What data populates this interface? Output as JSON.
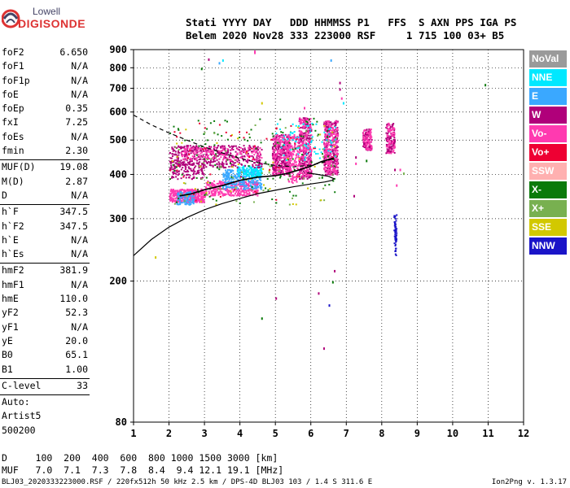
{
  "logo": {
    "line1": "Lowell",
    "line2": "DIGISONDE"
  },
  "header": {
    "line1": "Stati YYYY DAY   DDD HHMMSS P1   FFS  S AXN PPS IGA PS",
    "line2": "Belem 2020 Nov28 333 223000 RSF     1 715 100 03+ B5"
  },
  "params": [
    {
      "label": "foF2",
      "value": "6.650"
    },
    {
      "label": "foF1",
      "value": "N/A"
    },
    {
      "label": "foF1p",
      "value": "N/A"
    },
    {
      "label": "foE",
      "value": "N/A"
    },
    {
      "label": "foEp",
      "value": "0.35"
    },
    {
      "label": "fxI",
      "value": "7.25"
    },
    {
      "label": "foEs",
      "value": "N/A"
    },
    {
      "label": "fmin",
      "value": "2.30"
    },
    {
      "sep": true
    },
    {
      "label": "MUF(D)",
      "value": "19.08"
    },
    {
      "label": "M(D)",
      "value": "2.87"
    },
    {
      "label": "D",
      "value": "N/A"
    },
    {
      "sep": true
    },
    {
      "label": "h`F",
      "value": "347.5"
    },
    {
      "label": "h`F2",
      "value": "347.5"
    },
    {
      "label": "h`E",
      "value": "N/A"
    },
    {
      "label": "h`Es",
      "value": "N/A"
    },
    {
      "sep": true
    },
    {
      "label": "hmF2",
      "value": "381.9"
    },
    {
      "label": "hmF1",
      "value": "N/A"
    },
    {
      "label": "hmE",
      "value": "110.0"
    },
    {
      "label": "yF2",
      "value": "52.3"
    },
    {
      "label": "yF1",
      "value": "N/A"
    },
    {
      "label": "yE",
      "value": "20.0"
    },
    {
      "label": "B0",
      "value": "65.1"
    },
    {
      "label": "B1",
      "value": "1.00"
    },
    {
      "sep": true
    },
    {
      "label": "C-level",
      "value": "33"
    },
    {
      "sep": true
    },
    {
      "label": "Auto:",
      "value": ""
    },
    {
      "label": "Artist5",
      "value": ""
    },
    {
      "label": "500200",
      "value": ""
    }
  ],
  "legend": [
    {
      "label": "NoVal",
      "bg": "#9a9a9a",
      "fg": "#ffffff"
    },
    {
      "label": "NNE",
      "bg": "#00e8ff",
      "fg": "#ffffff"
    },
    {
      "label": "E",
      "bg": "#3aa8ff",
      "fg": "#ffffff"
    },
    {
      "label": "W",
      "bg": "#b0007a",
      "fg": "#ffffff"
    },
    {
      "label": "Vo-",
      "bg": "#ff3ab0",
      "fg": "#ffffff"
    },
    {
      "label": "Vo+",
      "bg": "#ee0033",
      "fg": "#ffffff"
    },
    {
      "label": "SSW",
      "bg": "#ffb0b0",
      "fg": "#ffffff"
    },
    {
      "label": "X-",
      "bg": "#0a7a0a",
      "fg": "#ffffff"
    },
    {
      "label": "X+",
      "bg": "#78b050",
      "fg": "#ffffff"
    },
    {
      "label": "SSE",
      "bg": "#d2c800",
      "fg": "#ffffff"
    },
    {
      "label": "NNW",
      "bg": "#1a14c8",
      "fg": "#ffffff"
    }
  ],
  "chart_data": {
    "type": "scatter",
    "title": "",
    "xlabel": "",
    "ylabel": "",
    "xlim": [
      1,
      12
    ],
    "ylim": [
      80,
      900
    ],
    "yscale": "log",
    "xticks": [
      "1",
      "2",
      "3",
      "4",
      "5",
      "6",
      "7",
      "8",
      "9",
      "10",
      "11",
      "12"
    ],
    "yticks": [
      {
        "v": 80,
        "label": "80"
      },
      {
        "v": 200,
        "label": "200"
      },
      {
        "v": 300,
        "label": "300"
      },
      {
        "v": 400,
        "label": "400"
      },
      {
        "v": 500,
        "label": "500"
      },
      {
        "v": 600,
        "label": "600"
      },
      {
        "v": 700,
        "label": "700"
      },
      {
        "v": 800,
        "label": "800"
      },
      {
        "v": 900,
        "label": "900"
      }
    ],
    "grid": true,
    "legend_position": "right",
    "traces": [
      {
        "name": "X-trace",
        "color": "#000000",
        "points": [
          [
            2.3,
            348
          ],
          [
            2.6,
            352
          ],
          [
            3.0,
            362
          ],
          [
            3.5,
            372
          ],
          [
            4.0,
            385
          ],
          [
            4.5,
            393
          ],
          [
            5.0,
            397
          ],
          [
            5.3,
            402
          ],
          [
            5.6,
            410
          ],
          [
            6.0,
            422
          ],
          [
            6.3,
            435
          ],
          [
            6.65,
            445
          ]
        ]
      },
      {
        "name": "profile",
        "color": "#000000",
        "points": [
          [
            1.0,
            236
          ],
          [
            1.5,
            262
          ],
          [
            2.0,
            284
          ],
          [
            2.5,
            302
          ],
          [
            3.0,
            318
          ],
          [
            3.5,
            331
          ],
          [
            4.0,
            342
          ],
          [
            4.5,
            353
          ],
          [
            5.0,
            361
          ],
          [
            5.5,
            369
          ],
          [
            6.0,
            376
          ],
          [
            6.4,
            381
          ],
          [
            6.6,
            385
          ],
          [
            6.65,
            389
          ],
          [
            6.5,
            395
          ],
          [
            6.2,
            400
          ],
          [
            5.9,
            404
          ]
        ]
      },
      {
        "name": "extrapolated",
        "color": "#000000",
        "dashed": true,
        "points": [
          [
            1.0,
            588
          ],
          [
            1.5,
            552
          ],
          [
            2.0,
            524
          ],
          [
            2.5,
            500
          ],
          [
            3.0,
            478
          ],
          [
            3.5,
            460
          ],
          [
            4.0,
            444
          ],
          [
            4.5,
            432
          ],
          [
            5.0,
            424
          ],
          [
            5.5,
            420
          ],
          [
            6.0,
            425
          ],
          [
            6.4,
            434
          ],
          [
            6.65,
            445
          ]
        ]
      }
    ],
    "clusters": [
      {
        "x": [
          2.0,
          3.0
        ],
        "y": [
          335,
          365
        ],
        "n": 380,
        "color": "#ff3ab0"
      },
      {
        "x": [
          2.2,
          2.7
        ],
        "y": [
          330,
          360
        ],
        "n": 100,
        "color": "#3aa8ff"
      },
      {
        "x": [
          2.0,
          3.0
        ],
        "y": [
          390,
          440
        ],
        "n": 120,
        "color": "#b0007a"
      },
      {
        "x": [
          3.0,
          4.5
        ],
        "y": [
          350,
          385
        ],
        "n": 340,
        "color": "#ff3ab0"
      },
      {
        "x": [
          3.5,
          4.6
        ],
        "y": [
          365,
          415
        ],
        "n": 260,
        "color": "#3aa8ff"
      },
      {
        "x": [
          3.9,
          4.6
        ],
        "y": [
          395,
          425
        ],
        "n": 130,
        "color": "#00e8ff"
      },
      {
        "x": [
          2.0,
          4.6
        ],
        "y": [
          420,
          485
        ],
        "n": 420,
        "color": "#b0007a"
      },
      {
        "x": [
          2.3,
          4.6
        ],
        "y": [
          440,
          480
        ],
        "n": 160,
        "color": "#ff3ab0"
      },
      {
        "x": [
          4.9,
          5.4
        ],
        "y": [
          400,
          520
        ],
        "n": 260,
        "color": "#b0007a"
      },
      {
        "x": [
          4.9,
          5.4
        ],
        "y": [
          400,
          520
        ],
        "n": 160,
        "color": "#ff3ab0"
      },
      {
        "x": [
          5.35,
          5.65
        ],
        "y": [
          380,
          520
        ],
        "n": 140,
        "color": "#ff3ab0"
      },
      {
        "x": [
          5.65,
          6.0
        ],
        "y": [
          390,
          580
        ],
        "n": 240,
        "color": "#b0007a"
      },
      {
        "x": [
          5.65,
          6.0
        ],
        "y": [
          390,
          580
        ],
        "n": 180,
        "color": "#ff3ab0"
      },
      {
        "x": [
          6.35,
          6.75
        ],
        "y": [
          400,
          570
        ],
        "n": 260,
        "color": "#b0007a"
      },
      {
        "x": [
          6.35,
          6.75
        ],
        "y": [
          400,
          570
        ],
        "n": 200,
        "color": "#ff3ab0"
      },
      {
        "x": [
          7.45,
          7.7
        ],
        "y": [
          470,
          540
        ],
        "n": 110,
        "color": "#b0007a"
      },
      {
        "x": [
          7.45,
          7.7
        ],
        "y": [
          470,
          540
        ],
        "n": 60,
        "color": "#ff3ab0"
      },
      {
        "x": [
          8.1,
          8.35
        ],
        "y": [
          460,
          560
        ],
        "n": 100,
        "color": "#b0007a"
      },
      {
        "x": [
          8.1,
          8.35
        ],
        "y": [
          460,
          560
        ],
        "n": 60,
        "color": "#ff3ab0"
      },
      {
        "x": [
          8.33,
          8.4
        ],
        "y": [
          235,
          310
        ],
        "n": 55,
        "color": "#1a14c8"
      },
      {
        "x": [
          2.0,
          6.7
        ],
        "y": [
          330,
          580
        ],
        "n": 120,
        "color": "#0a7a0a"
      },
      {
        "x": [
          2.0,
          6.7
        ],
        "y": [
          330,
          560
        ],
        "n": 60,
        "color": "#78b050"
      },
      {
        "x": [
          2.0,
          6.7
        ],
        "y": [
          330,
          560
        ],
        "n": 40,
        "color": "#d2c800"
      },
      {
        "x": [
          2.0,
          6.7
        ],
        "y": [
          330,
          560
        ],
        "n": 50,
        "color": "#ee0033"
      },
      {
        "x": [
          5.0,
          6.7
        ],
        "y": [
          440,
          560
        ],
        "n": 70,
        "color": "#00e8ff"
      }
    ],
    "points": [
      {
        "x": 4.4,
        "y": 895,
        "color": "#ff3ab0"
      },
      {
        "x": 4.4,
        "y": 888,
        "color": "#ff3ab0"
      },
      {
        "x": 3.1,
        "y": 850,
        "color": "#b0007a"
      },
      {
        "x": 3.5,
        "y": 845,
        "color": "#00e8ff"
      },
      {
        "x": 3.4,
        "y": 830,
        "color": "#3aa8ff"
      },
      {
        "x": 2.9,
        "y": 800,
        "color": "#0a7a0a"
      },
      {
        "x": 6.55,
        "y": 845,
        "color": "#3aa8ff"
      },
      {
        "x": 6.8,
        "y": 730,
        "color": "#b0007a"
      },
      {
        "x": 6.8,
        "y": 700,
        "color": "#b0007a"
      },
      {
        "x": 6.85,
        "y": 660,
        "color": "#ff3ab0"
      },
      {
        "x": 6.9,
        "y": 640,
        "color": "#00e8ff"
      },
      {
        "x": 4.6,
        "y": 640,
        "color": "#d2c800"
      },
      {
        "x": 5.8,
        "y": 620,
        "color": "#ff3ab0"
      },
      {
        "x": 10.9,
        "y": 720,
        "color": "#0a7a0a"
      },
      {
        "x": 1.6,
        "y": 235,
        "color": "#d2c800"
      },
      {
        "x": 6.65,
        "y": 215,
        "color": "#b0007a"
      },
      {
        "x": 6.6,
        "y": 200,
        "color": "#0a7a0a"
      },
      {
        "x": 6.2,
        "y": 186,
        "color": "#b0007a"
      },
      {
        "x": 6.5,
        "y": 172,
        "color": "#1a14c8"
      },
      {
        "x": 6.35,
        "y": 130,
        "color": "#b0007a"
      },
      {
        "x": 4.6,
        "y": 158,
        "color": "#0a7a0a"
      },
      {
        "x": 5.0,
        "y": 180,
        "color": "#b0007a"
      },
      {
        "x": 8.35,
        "y": 415,
        "color": "#b0007a"
      },
      {
        "x": 8.5,
        "y": 415,
        "color": "#ff3ab0"
      },
      {
        "x": 8.4,
        "y": 375,
        "color": "#ff3ab0"
      },
      {
        "x": 8.6,
        "y": 405,
        "color": "#78b050"
      },
      {
        "x": 7.25,
        "y": 450,
        "color": "#b0007a"
      },
      {
        "x": 7.25,
        "y": 432,
        "color": "#ff3ab0"
      },
      {
        "x": 7.2,
        "y": 350,
        "color": "#b0007a"
      },
      {
        "x": 7.55,
        "y": 440,
        "color": "#0a7a0a"
      },
      {
        "x": 6.3,
        "y": 395,
        "color": "#0a7a0a"
      }
    ]
  },
  "footer": {
    "line1": "D     100  200  400  600  800 1000 1500 3000 [km]",
    "line2": "MUF   7.0  7.1  7.3  7.8  8.4  9.4 12.1 19.1 [MHz]",
    "source": "BLJ03_2020333223000.RSF / 220fx512h 50 kHz 2.5 km / DPS-4D BLJ03 103 / 1.4 S 311.6 E",
    "version": "Ion2Png v. 1.3.17"
  }
}
